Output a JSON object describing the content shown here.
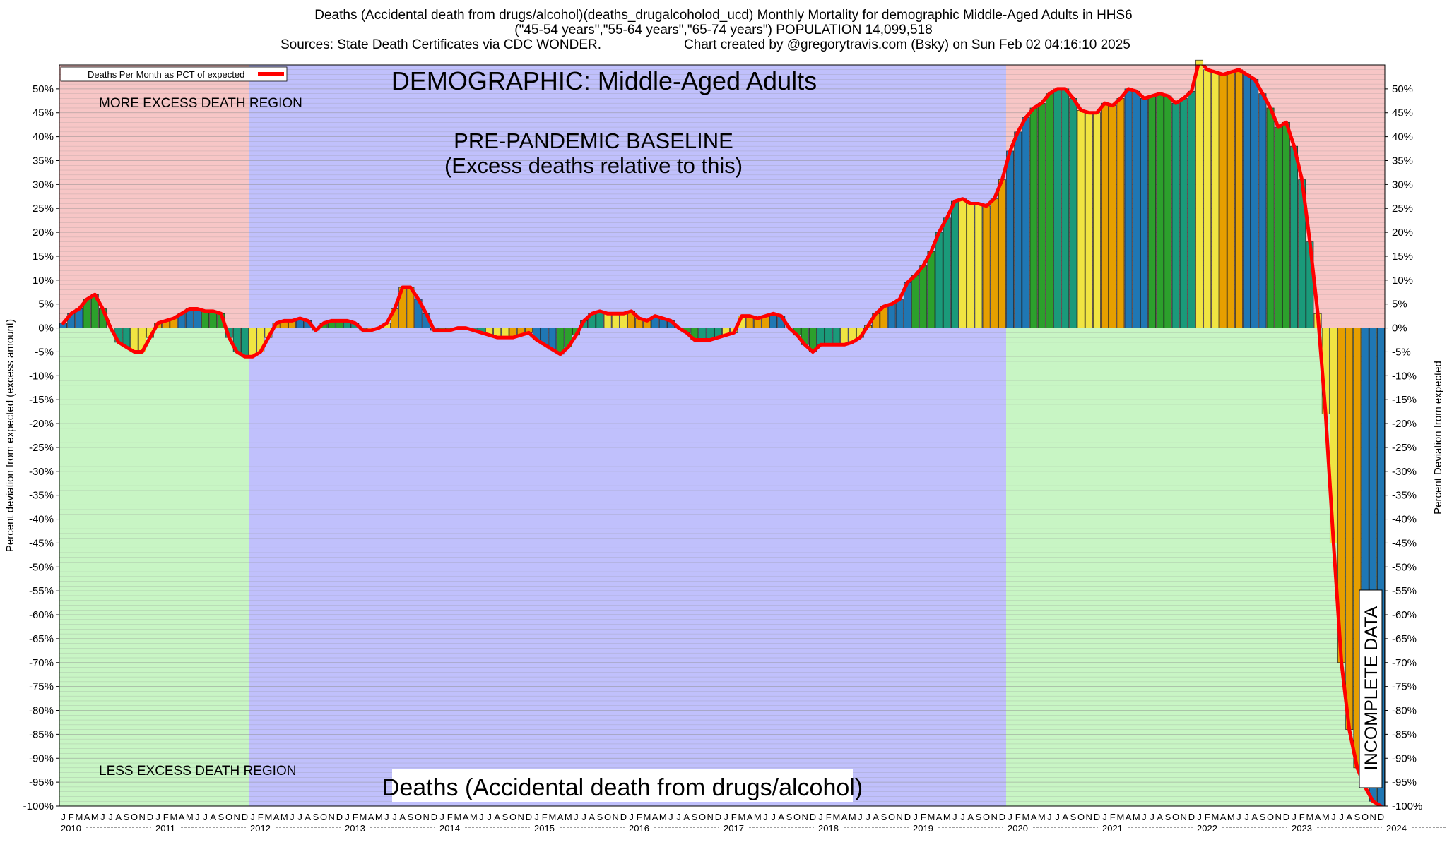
{
  "header": {
    "line1": "Deaths (Accidental death from drugs/alcohol)(deaths_drugalcoholod_ucd) Monthly Mortality for demographic Middle-Aged Adults in HHS6",
    "line2": "(\"45-54 years\",\"55-64 years\",\"65-74 years\") POPULATION 14,099,518",
    "sources": "Sources: State Death Certificates via CDC WONDER.",
    "credit": "Chart created by @gregorytravis.com (Bsky) on Sun Feb 02 04:16:10 2025"
  },
  "chart_data": {
    "type": "bar",
    "demographic_title": "DEMOGRAPHIC: Middle-Aged Adults",
    "bottom_title": "Deaths (Accidental death from drugs/alcohol)",
    "baseline_label_1": "PRE-PANDEMIC BASELINE",
    "baseline_label_2": "(Excess deaths relative to this)",
    "more_excess_label": "MORE EXCESS DEATH REGION",
    "less_excess_label": "LESS EXCESS DEATH REGION",
    "incomplete_label": "INCOMPLETE DATA",
    "legend_label": "Deaths Per Month as PCT of expected",
    "legend_position": "top-left",
    "ylabel_left": "Percent deviation from expected (excess amount)",
    "ylabel_right": "Percent Deviation from expected",
    "ylim": [
      -100,
      55
    ],
    "yticks": [
      50,
      45,
      40,
      35,
      30,
      25,
      20,
      15,
      10,
      5,
      0,
      -5,
      -10,
      -15,
      -20,
      -25,
      -30,
      -35,
      -40,
      -45,
      -50,
      -55,
      -60,
      -65,
      -70,
      -75,
      -80,
      -85,
      -90,
      -95,
      -100
    ],
    "month_letters": [
      "J",
      "F",
      "M",
      "A",
      "M",
      "J",
      "J",
      "A",
      "S",
      "O",
      "N",
      "D"
    ],
    "years": [
      "2010",
      "2011",
      "2012",
      "2013",
      "2014",
      "2015",
      "2016",
      "2017",
      "2018",
      "2019",
      "2020",
      "2021",
      "2022",
      "2023",
      "2024"
    ],
    "baseline_years": [
      "2012",
      "2019"
    ],
    "incomplete_from": "2024-07",
    "grid": true,
    "bar_colors": [
      "#1f77b4",
      "#2ca02c",
      "#1a9a7a",
      "#f0e442",
      "#e69f00"
    ],
    "line_color": "#ff0000",
    "region_colors": {
      "excess": "#f7c6c6",
      "deficit": "#c8f5c4",
      "baseline": "#c0c0fc",
      "incomplete": "#b0b0b0"
    },
    "series": [
      {
        "values": [
          1,
          3,
          4,
          6,
          7,
          4,
          0,
          -3,
          -4,
          -5,
          -5,
          -2,
          1,
          1.5,
          2,
          3,
          4,
          4,
          3.5,
          3.5,
          3,
          -2,
          -5,
          -6,
          -6,
          -5,
          -2,
          1,
          1.5,
          1.5,
          2,
          1.5,
          -0.5,
          1,
          1.5,
          1.5,
          1.5,
          1,
          -0.5,
          -0.5,
          0,
          1,
          4,
          8.5,
          8.5,
          6,
          3,
          -0.5,
          -0.5,
          -0.5,
          0,
          0,
          -0.5,
          -1,
          -1.5,
          -2,
          -2,
          -2,
          -1.5,
          -1,
          -2.5,
          -3.5,
          -4.5,
          -5.5,
          -4,
          -1.5,
          1.5,
          3,
          3.5,
          3,
          3,
          3,
          3.5,
          2,
          1.5,
          2.5,
          2,
          1.5,
          0,
          -1,
          -2.5,
          -2.5,
          -2.5,
          -2,
          -1.5,
          -1,
          2.5,
          2.5,
          2,
          2.5,
          3,
          2.5,
          0,
          -1.5,
          -3.5,
          -5,
          -3.5,
          -3.5,
          -3.5,
          -3.5,
          -3,
          -2,
          0.5,
          3,
          4.5,
          5,
          6,
          9.5,
          11,
          13,
          16,
          20,
          23,
          26.5,
          27,
          26,
          26,
          25.5,
          27,
          31,
          37,
          41,
          44,
          46,
          47,
          49,
          50,
          50,
          48,
          45.5,
          45,
          45,
          47,
          46.5,
          48,
          50,
          49.5,
          48,
          48.5,
          49,
          48.5,
          47,
          48,
          49.5,
          56,
          54,
          53.5,
          53,
          53.5,
          54,
          53,
          52,
          49,
          46,
          42,
          43,
          38,
          31,
          18,
          3,
          -18,
          -45,
          -70,
          -84,
          -92,
          -96,
          -99,
          -100
        ]
      }
    ]
  }
}
